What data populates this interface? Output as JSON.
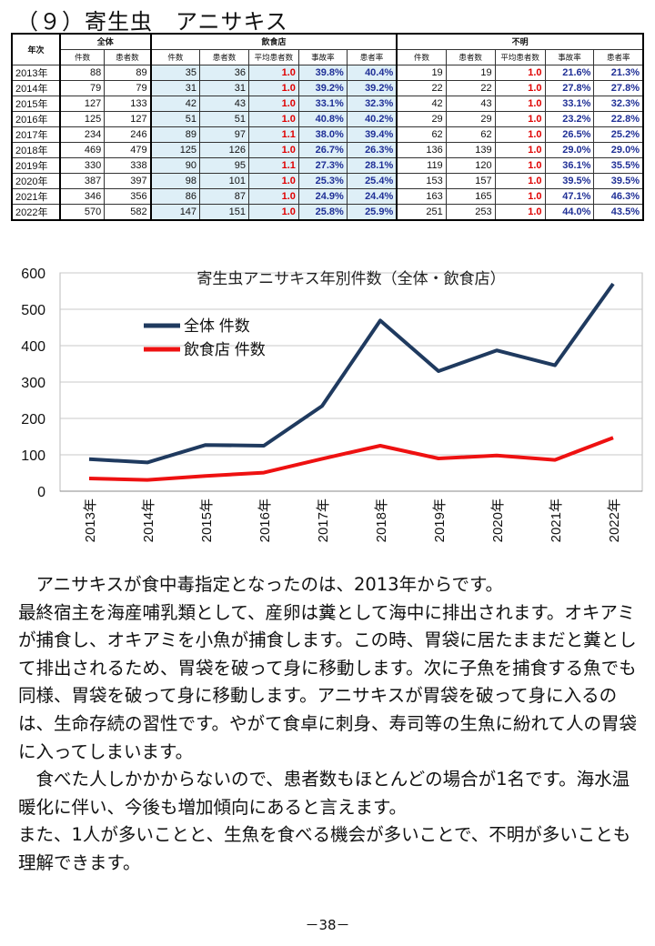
{
  "section_title": "（９）寄生虫　アニサキス",
  "table": {
    "year_header": "年次",
    "group_all": "全体",
    "group_restaurant": "飲食店",
    "group_unknown": "不明",
    "col_cases": "件数",
    "col_patients": "患者数",
    "col_avg_patients": "平均患者数",
    "col_accident_rate": "事故率",
    "col_patient_rate": "患者率",
    "rows": [
      {
        "year": "2013年",
        "all_cases": "88",
        "all_patients": "89",
        "r_cases": "35",
        "r_patients": "36",
        "r_avg": "1.0",
        "r_acc": "39.8%",
        "r_pat": "40.4%",
        "u_cases": "19",
        "u_patients": "19",
        "u_avg": "1.0",
        "u_acc": "21.6%",
        "u_pat": "21.3%"
      },
      {
        "year": "2014年",
        "all_cases": "79",
        "all_patients": "79",
        "r_cases": "31",
        "r_patients": "31",
        "r_avg": "1.0",
        "r_acc": "39.2%",
        "r_pat": "39.2%",
        "u_cases": "22",
        "u_patients": "22",
        "u_avg": "1.0",
        "u_acc": "27.8%",
        "u_pat": "27.8%"
      },
      {
        "year": "2015年",
        "all_cases": "127",
        "all_patients": "133",
        "r_cases": "42",
        "r_patients": "43",
        "r_avg": "1.0",
        "r_acc": "33.1%",
        "r_pat": "32.3%",
        "u_cases": "42",
        "u_patients": "43",
        "u_avg": "1.0",
        "u_acc": "33.1%",
        "u_pat": "32.3%"
      },
      {
        "year": "2016年",
        "all_cases": "125",
        "all_patients": "127",
        "r_cases": "51",
        "r_patients": "51",
        "r_avg": "1.0",
        "r_acc": "40.8%",
        "r_pat": "40.2%",
        "u_cases": "29",
        "u_patients": "29",
        "u_avg": "1.0",
        "u_acc": "23.2%",
        "u_pat": "22.8%"
      },
      {
        "year": "2017年",
        "all_cases": "234",
        "all_patients": "246",
        "r_cases": "89",
        "r_patients": "97",
        "r_avg": "1.1",
        "r_acc": "38.0%",
        "r_pat": "39.4%",
        "u_cases": "62",
        "u_patients": "62",
        "u_avg": "1.0",
        "u_acc": "26.5%",
        "u_pat": "25.2%"
      },
      {
        "year": "2018年",
        "all_cases": "469",
        "all_patients": "479",
        "r_cases": "125",
        "r_patients": "126",
        "r_avg": "1.0",
        "r_acc": "26.7%",
        "r_pat": "26.3%",
        "u_cases": "136",
        "u_patients": "139",
        "u_avg": "1.0",
        "u_acc": "29.0%",
        "u_pat": "29.0%"
      },
      {
        "year": "2019年",
        "all_cases": "330",
        "all_patients": "338",
        "r_cases": "90",
        "r_patients": "95",
        "r_avg": "1.1",
        "r_acc": "27.3%",
        "r_pat": "28.1%",
        "u_cases": "119",
        "u_patients": "120",
        "u_avg": "1.0",
        "u_acc": "36.1%",
        "u_pat": "35.5%"
      },
      {
        "year": "2020年",
        "all_cases": "387",
        "all_patients": "397",
        "r_cases": "98",
        "r_patients": "101",
        "r_avg": "1.0",
        "r_acc": "25.3%",
        "r_pat": "25.4%",
        "u_cases": "153",
        "u_patients": "157",
        "u_avg": "1.0",
        "u_acc": "39.5%",
        "u_pat": "39.5%"
      },
      {
        "year": "2021年",
        "all_cases": "346",
        "all_patients": "356",
        "r_cases": "86",
        "r_patients": "87",
        "r_avg": "1.0",
        "r_acc": "24.9%",
        "r_pat": "24.4%",
        "u_cases": "163",
        "u_patients": "165",
        "u_avg": "1.0",
        "u_acc": "47.1%",
        "u_pat": "46.3%"
      },
      {
        "year": "2022年",
        "all_cases": "570",
        "all_patients": "582",
        "r_cases": "147",
        "r_patients": "151",
        "r_avg": "1.0",
        "r_acc": "25.8%",
        "r_pat": "25.9%",
        "u_cases": "251",
        "u_patients": "253",
        "u_avg": "1.0",
        "u_acc": "44.0%",
        "u_pat": "43.5%"
      }
    ]
  },
  "chart_data": {
    "type": "line",
    "title": "寄生虫アニサキス年別件数（全体・飲食店）",
    "categories": [
      "2013年",
      "2014年",
      "2015年",
      "2016年",
      "2017年",
      "2018年",
      "2019年",
      "2020年",
      "2021年",
      "2022年"
    ],
    "series": [
      {
        "name": "全体 件数",
        "color": "#1f3a5f",
        "values": [
          88,
          79,
          127,
          125,
          234,
          469,
          330,
          387,
          346,
          570
        ]
      },
      {
        "name": "飲食店 件数",
        "color": "#ee1111",
        "values": [
          35,
          31,
          42,
          51,
          89,
          125,
          90,
          98,
          86,
          147
        ]
      }
    ],
    "ylim": [
      0,
      600
    ],
    "yticks": [
      0,
      100,
      200,
      300,
      400,
      500,
      600
    ],
    "grid": true,
    "legend": "top-left"
  },
  "body_paragraphs": [
    "　アニサキスが食中毒指定となったのは、2013年からです。\n最終宿主を海産哺乳類として、産卵は糞として海中に排出されます。オキアミが捕食し、オキアミを小魚が捕食します。この時、胃袋に居たままだと糞として排出されるため、胃袋を破って身に移動します。次に子魚を捕食する魚でも同様、胃袋を破って身に移動します。アニサキスが胃袋を破って身に入るのは、生命存続の習性です。やがて食卓に刺身、寿司等の生魚に紛れて人の胃袋に入ってしまいます。",
    "　食べた人しかかからないので、患者数もほとんどの場合が1名です。海水温暖化に伴い、今後も増加傾向にあると言えます。\nまた、1人が多いことと、生魚を食べる機会が多いことで、不明が多いことも理解できます。"
  ],
  "page_number": "－38－"
}
